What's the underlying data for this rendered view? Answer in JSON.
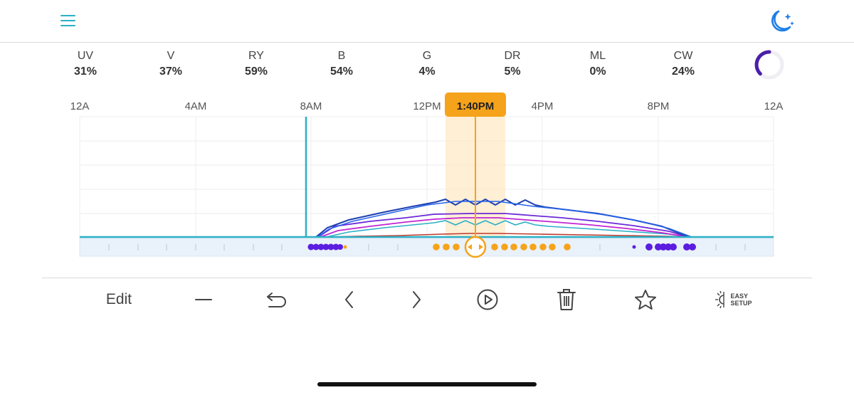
{
  "header": {
    "menu_icon": "hamburger-menu-icon",
    "theme_icon": "moon-stars-icon",
    "theme_color": "#1e7fe6",
    "accent": "#2bb0c6"
  },
  "channels": [
    {
      "name": "UV",
      "value": "31%"
    },
    {
      "name": "V",
      "value": "37%"
    },
    {
      "name": "RY",
      "value": "59%"
    },
    {
      "name": "B",
      "value": "54%"
    },
    {
      "name": "G",
      "value": "4%"
    },
    {
      "name": "DR",
      "value": "5%"
    },
    {
      "name": "ML",
      "value": "0%"
    },
    {
      "name": "CW",
      "value": "24%"
    }
  ],
  "spinner": {
    "color": "#4b1fa8"
  },
  "timeline": {
    "time_labels": [
      "12A",
      "4AM",
      "8AM",
      "12PM",
      "4PM",
      "8PM",
      "12A"
    ],
    "current_time": "1:40PM",
    "current_color": "#f5a31a",
    "marker_line_color": "#2bb0c6"
  },
  "toolbar": {
    "edit_label": "Edit",
    "easy_setup_line1": "EASY",
    "easy_setup_line2": "SETUP",
    "icons": [
      "minus-icon",
      "undo-icon",
      "chevron-left-icon",
      "chevron-right-icon",
      "play-icon",
      "trash-icon",
      "star-icon",
      "easy-setup-icon"
    ]
  }
}
